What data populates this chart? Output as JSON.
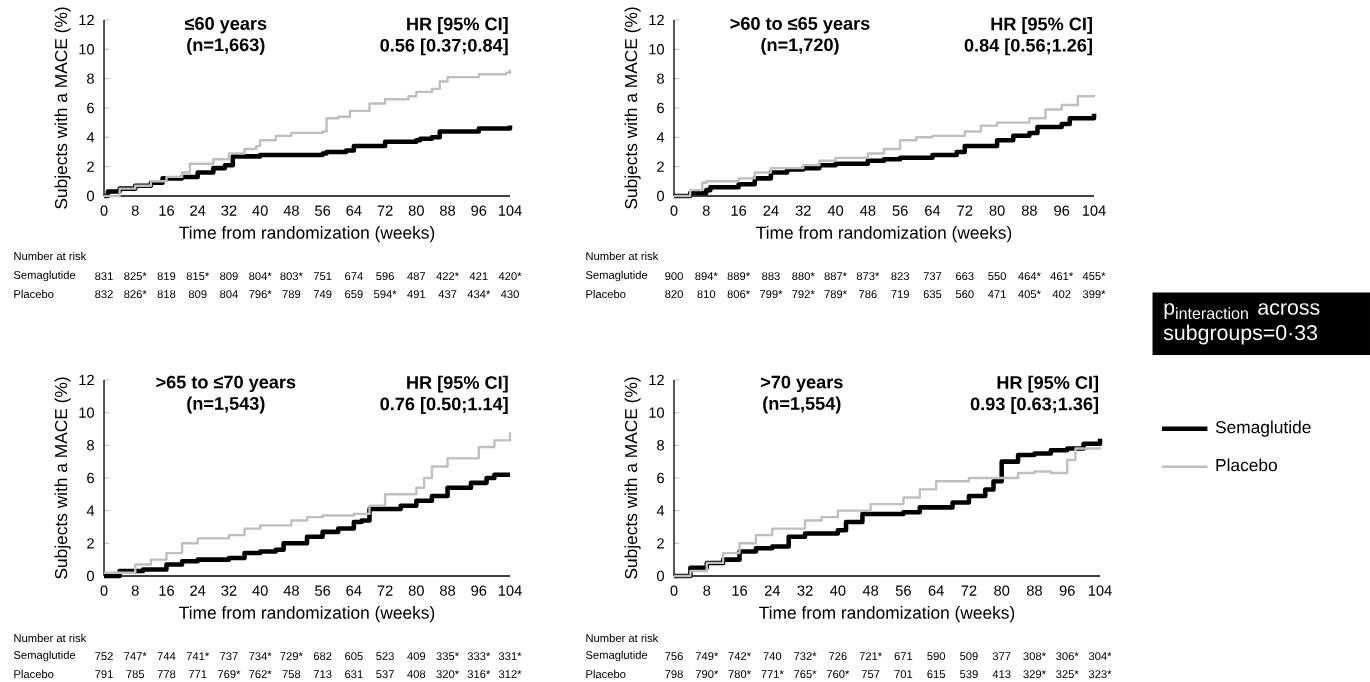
{
  "chart_data": [
    {
      "type": "step",
      "title": "≤60 years",
      "subtitle": "(n=1,663)",
      "xlabel": "Time from randomization (weeks)",
      "ylabel": "Subjects with a MACE (%)",
      "xlim": [
        0,
        104
      ],
      "ylim": [
        0,
        12
      ],
      "xticks": [
        0,
        8,
        16,
        24,
        32,
        40,
        48,
        56,
        64,
        72,
        80,
        88,
        96,
        104
      ],
      "yticks": [
        0,
        2,
        4,
        6,
        8,
        10,
        12
      ],
      "annotations": [
        "HR [95% CI]",
        "0.56 [0.37;0.84]",
        "Number at risk",
        "Semaglutide",
        "831",
        "825*",
        "819",
        "815*",
        "809",
        "804*",
        "803*",
        "751",
        "674",
        "596",
        "487",
        "422*",
        "421",
        "420*",
        "Placebo",
        "832",
        "826*",
        "818",
        "809",
        "804",
        "796*",
        "789",
        "749",
        "659",
        "594*",
        "491",
        "437",
        "434*",
        "430"
      ],
      "series": [
        {
          "color": "#000000",
          "x": [
            0,
            1,
            4,
            8,
            12,
            15,
            20,
            24,
            28,
            31,
            33,
            40,
            48,
            56,
            57,
            62,
            64,
            72,
            80,
            81,
            84,
            86,
            96,
            104
          ],
          "values": [
            0,
            0.3,
            0.5,
            0.7,
            0.9,
            1.2,
            1.3,
            1.6,
            1.9,
            2.1,
            2.7,
            2.8,
            2.8,
            2.9,
            3.0,
            3.1,
            3.4,
            3.7,
            3.8,
            3.9,
            4.0,
            4.4,
            4.6,
            4.8
          ]
        },
        {
          "color": "#bfbfbf",
          "x": [
            0,
            4,
            8,
            12,
            16,
            20,
            22,
            28,
            32,
            36,
            39,
            40,
            44,
            48,
            56,
            57,
            60,
            63,
            68,
            72,
            78,
            80,
            84,
            86,
            88,
            96,
            103,
            104
          ],
          "values": [
            0,
            0.5,
            0.7,
            1.0,
            1.3,
            1.6,
            2.2,
            2.5,
            2.9,
            3.2,
            3.4,
            3.8,
            4.1,
            4.3,
            4.4,
            5.3,
            5.4,
            5.8,
            6.3,
            6.6,
            6.8,
            7.1,
            7.3,
            7.8,
            8.1,
            8.3,
            8.4,
            8.6
          ]
        }
      ]
    },
    {
      "type": "step",
      "title": ">60 to ≤65 years",
      "subtitle": "(n=1,720)",
      "xlabel": "Time from randomization (weeks)",
      "ylabel": "Subjects with a MACE (%)",
      "xlim": [
        0,
        104
      ],
      "ylim": [
        0,
        12
      ],
      "xticks": [
        0,
        8,
        16,
        24,
        32,
        40,
        48,
        56,
        64,
        72,
        80,
        88,
        96,
        104
      ],
      "yticks": [
        0,
        2,
        4,
        6,
        8,
        10,
        12
      ],
      "annotations": [
        "HR [95% CI]",
        "0.84 [0.56;1.26]",
        "Number at risk",
        "Semaglutide",
        "900",
        "894*",
        "889*",
        "883",
        "880*",
        "887*",
        "873*",
        "823",
        "737",
        "663",
        "550",
        "464*",
        "461*",
        "455*",
        "Placebo",
        "820",
        "810",
        "806*",
        "799*",
        "792*",
        "789*",
        "786",
        "719",
        "635",
        "560",
        "471",
        "405*",
        "402",
        "399*"
      ],
      "series": [
        {
          "color": "#000000",
          "x": [
            0,
            4,
            8,
            9,
            16,
            20,
            24,
            28,
            32,
            36,
            40,
            48,
            52,
            56,
            64,
            70,
            72,
            80,
            84,
            88,
            90,
            96,
            98,
            104
          ],
          "values": [
            0,
            0.2,
            0.4,
            0.6,
            0.8,
            1.2,
            1.6,
            1.8,
            1.9,
            2.1,
            2.2,
            2.4,
            2.5,
            2.6,
            2.8,
            3.0,
            3.4,
            3.8,
            4.1,
            4.3,
            4.7,
            4.9,
            5.3,
            5.6
          ]
        },
        {
          "color": "#bfbfbf",
          "x": [
            0,
            4,
            7,
            8,
            16,
            20,
            24,
            32,
            36,
            40,
            48,
            52,
            56,
            60,
            64,
            72,
            76,
            80,
            88,
            92,
            96,
            100,
            104
          ],
          "values": [
            0,
            0.4,
            0.9,
            1.0,
            1.2,
            1.6,
            1.9,
            2.1,
            2.4,
            2.6,
            2.9,
            3.2,
            3.8,
            4.0,
            4.1,
            4.4,
            4.8,
            5.0,
            5.3,
            5.9,
            6.2,
            6.8,
            6.9
          ]
        }
      ]
    },
    {
      "type": "step",
      "title": ">65 to ≤70 years",
      "subtitle": "(n=1,543)",
      "xlabel": "Time from randomization (weeks)",
      "ylabel": "Subjects with a MACE (%)",
      "xlim": [
        0,
        104
      ],
      "ylim": [
        0,
        12
      ],
      "xticks": [
        0,
        8,
        16,
        24,
        32,
        40,
        48,
        56,
        64,
        72,
        80,
        88,
        96,
        104
      ],
      "yticks": [
        0,
        2,
        4,
        6,
        8,
        10,
        12
      ],
      "annotations": [
        "HR [95% CI]",
        "0.76 [0.50;1.14]",
        "Number at risk",
        "Semaglutide",
        "752",
        "747*",
        "744",
        "741*",
        "737",
        "734*",
        "729*",
        "682",
        "605",
        "523",
        "409",
        "335*",
        "333*",
        "331*",
        "Placebo",
        "791",
        "785",
        "778",
        "771",
        "769*",
        "762*",
        "758",
        "713",
        "631",
        "537",
        "408",
        "320*",
        "316*",
        "312*"
      ],
      "series": [
        {
          "color": "#000000",
          "x": [
            0,
            3,
            4,
            10,
            16,
            20,
            24,
            32,
            36,
            40,
            44,
            46,
            52,
            56,
            60,
            64,
            66,
            68,
            76,
            80,
            84,
            88,
            94,
            98,
            100,
            104
          ],
          "values": [
            0,
            0,
            0.3,
            0.4,
            0.7,
            0.9,
            1.0,
            1.1,
            1.4,
            1.5,
            1.6,
            2.0,
            2.4,
            2.7,
            2.9,
            3.3,
            3.4,
            4.1,
            4.3,
            4.6,
            4.9,
            5.4,
            5.7,
            6.0,
            6.2,
            6.2
          ]
        },
        {
          "color": "#bfbfbf",
          "x": [
            0,
            8,
            12,
            16,
            20,
            24,
            32,
            36,
            40,
            48,
            52,
            56,
            64,
            68,
            72,
            80,
            82,
            84,
            88,
            96,
            100,
            104
          ],
          "values": [
            0.2,
            0.7,
            1.0,
            1.4,
            2.0,
            2.3,
            2.5,
            2.9,
            3.1,
            3.4,
            3.6,
            3.7,
            3.8,
            4.3,
            5.0,
            5.4,
            6.0,
            6.7,
            7.2,
            7.9,
            8.3,
            8.8
          ]
        }
      ]
    },
    {
      "type": "step",
      "title": ">70 years",
      "subtitle": "(n=1,554)",
      "xlabel": "Time from randomization (weeks)",
      "ylabel": "Subjects with a MACE (%)",
      "xlim": [
        0,
        104
      ],
      "ylim": [
        0,
        12
      ],
      "xticks": [
        0,
        8,
        16,
        24,
        32,
        40,
        48,
        56,
        64,
        72,
        80,
        88,
        96,
        104
      ],
      "yticks": [
        0,
        2,
        4,
        6,
        8,
        10,
        12
      ],
      "legend": "right",
      "annotations": [
        "HR [95% CI]",
        "0.93 [0.63;1.36]",
        "Number at risk",
        "Semaglutide",
        "756",
        "749*",
        "742*",
        "740",
        "732*",
        "726",
        "721*",
        "671",
        "590",
        "509",
        "377",
        "308*",
        "306*",
        "304*",
        "Placebo",
        "798",
        "790*",
        "780*",
        "771*",
        "765*",
        "760*",
        "757",
        "701",
        "615",
        "539",
        "413",
        "329*",
        "325*",
        "323*"
      ],
      "series": [
        {
          "name": "Semaglutide",
          "color": "#000000",
          "x": [
            0,
            4,
            8,
            12,
            16,
            20,
            24,
            28,
            32,
            40,
            42,
            46,
            56,
            60,
            68,
            72,
            76,
            78,
            80,
            84,
            88,
            92,
            96,
            100,
            104
          ],
          "values": [
            0,
            0.5,
            0.8,
            1.0,
            1.5,
            1.7,
            1.8,
            2.4,
            2.6,
            2.8,
            3.3,
            3.8,
            3.9,
            4.2,
            4.5,
            4.9,
            5.3,
            5.8,
            7.0,
            7.4,
            7.5,
            7.7,
            7.8,
            8.1,
            8.4
          ]
        },
        {
          "name": "Placebo",
          "color": "#bfbfbf",
          "x": [
            0,
            4,
            8,
            12,
            16,
            20,
            24,
            32,
            36,
            40,
            48,
            56,
            60,
            64,
            72,
            80,
            84,
            88,
            92,
            96,
            98,
            104
          ],
          "values": [
            0,
            0.3,
            0.8,
            1.4,
            2.0,
            2.5,
            2.9,
            3.4,
            3.6,
            4.0,
            4.4,
            4.8,
            5.3,
            5.8,
            6.0,
            6.0,
            6.3,
            6.4,
            6.3,
            7.1,
            7.8,
            7.9
          ]
        }
      ]
    },
    {
      "type": "other",
      "title": "\\mathrm{p}_{\\mathrm{interaction}}",
      "subtitle": "across subgroups=0·33"
    }
  ]
}
